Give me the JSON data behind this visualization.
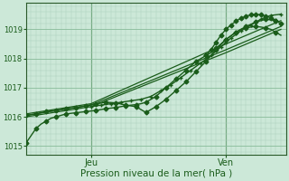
{
  "xlabel": "Pression niveau de la mer( hPa )",
  "bg_color": "#cce8d8",
  "grid_minor_color": "#aaccba",
  "grid_major_color": "#88bb99",
  "line_color": "#1a5c1a",
  "ylim": [
    1014.7,
    1019.9
  ],
  "xlim": [
    0,
    52
  ],
  "xtick_positions": [
    13,
    40
  ],
  "xtick_labels": [
    "Jeu",
    "Ven"
  ],
  "ytick_positions": [
    1015,
    1016,
    1017,
    1018,
    1019
  ],
  "series": [
    {
      "x": [
        0,
        1,
        2,
        3,
        4,
        5,
        6,
        7,
        8,
        9,
        10,
        11,
        12,
        13,
        14,
        15,
        16,
        17,
        18,
        19,
        20,
        21,
        22,
        23,
        24,
        25,
        26,
        27,
        28,
        29,
        30,
        31,
        32,
        33,
        34,
        35,
        36,
        37,
        38,
        39,
        40,
        41,
        42,
        43,
        44,
        45,
        46,
        47,
        48,
        49,
        50,
        51
      ],
      "y": [
        1015.1,
        1015.35,
        1015.6,
        1015.75,
        1015.85,
        1015.95,
        1016.0,
        1016.05,
        1016.1,
        1016.12,
        1016.14,
        1016.16,
        1016.18,
        1016.2,
        1016.22,
        1016.25,
        1016.28,
        1016.3,
        1016.32,
        1016.35,
        1016.38,
        1016.4,
        1016.42,
        1016.45,
        1016.5,
        1016.6,
        1016.7,
        1016.85,
        1017.0,
        1017.15,
        1017.3,
        1017.45,
        1017.6,
        1017.75,
        1017.9,
        1018.0,
        1018.1,
        1018.2,
        1018.35,
        1018.5,
        1018.65,
        1018.78,
        1018.9,
        1019.0,
        1019.05,
        1019.08,
        1019.1,
        1019.08,
        1019.05,
        1019.0,
        1018.9,
        1018.8
      ],
      "marker": "D",
      "markersize": 2.5,
      "linewidth": 1.0,
      "every": 2
    },
    {
      "x": [
        0,
        2,
        4,
        6,
        8,
        10,
        12,
        14,
        16,
        18,
        20,
        22,
        24,
        26,
        28,
        30,
        32,
        34,
        36,
        38,
        40,
        42,
        44,
        46,
        48,
        50
      ],
      "y": [
        1016.05,
        1016.1,
        1016.18,
        1016.22,
        1016.28,
        1016.32,
        1016.38,
        1016.45,
        1016.5,
        1016.48,
        1016.4,
        1016.35,
        1016.15,
        1016.35,
        1016.6,
        1016.9,
        1017.2,
        1017.55,
        1017.9,
        1018.3,
        1018.65,
        1018.9,
        1019.1,
        1019.25,
        1019.35,
        1019.3
      ],
      "marker": "D",
      "markersize": 2.5,
      "linewidth": 1.0,
      "every": 1
    },
    {
      "x": [
        0,
        13,
        40,
        51
      ],
      "y": [
        1016.0,
        1016.35,
        1018.2,
        1019.0
      ],
      "marker": null,
      "markersize": 0,
      "linewidth": 0.9,
      "every": 1
    },
    {
      "x": [
        0,
        13,
        40,
        51
      ],
      "y": [
        1016.05,
        1016.4,
        1018.3,
        1019.1
      ],
      "marker": null,
      "markersize": 0,
      "linewidth": 0.9,
      "every": 1
    },
    {
      "x": [
        0,
        13,
        40,
        51
      ],
      "y": [
        1016.1,
        1016.45,
        1018.5,
        1019.3
      ],
      "marker": null,
      "markersize": 0,
      "linewidth": 0.9,
      "every": 1
    },
    {
      "x": [
        13,
        15,
        17,
        19,
        21,
        23,
        25,
        27,
        29,
        31,
        33,
        35,
        37,
        39,
        40,
        41,
        43,
        45,
        47,
        49,
        51
      ],
      "y": [
        1016.35,
        1016.4,
        1016.45,
        1016.5,
        1016.55,
        1016.6,
        1016.7,
        1016.9,
        1017.1,
        1017.35,
        1017.6,
        1017.85,
        1018.1,
        1018.4,
        1018.55,
        1018.7,
        1018.95,
        1019.15,
        1019.35,
        1019.48,
        1019.52
      ],
      "marker": "+",
      "markersize": 3.5,
      "linewidth": 1.0,
      "every": 1
    },
    {
      "x": [
        36,
        37,
        38,
        39,
        40,
        41,
        42,
        43,
        44,
        45,
        46,
        47,
        48,
        49,
        50,
        51
      ],
      "y": [
        1018.1,
        1018.3,
        1018.55,
        1018.8,
        1019.0,
        1019.15,
        1019.28,
        1019.38,
        1019.45,
        1019.5,
        1019.52,
        1019.5,
        1019.45,
        1019.4,
        1019.3,
        1019.2
      ],
      "marker": "D",
      "markersize": 2.5,
      "linewidth": 1.0,
      "every": 1
    }
  ]
}
